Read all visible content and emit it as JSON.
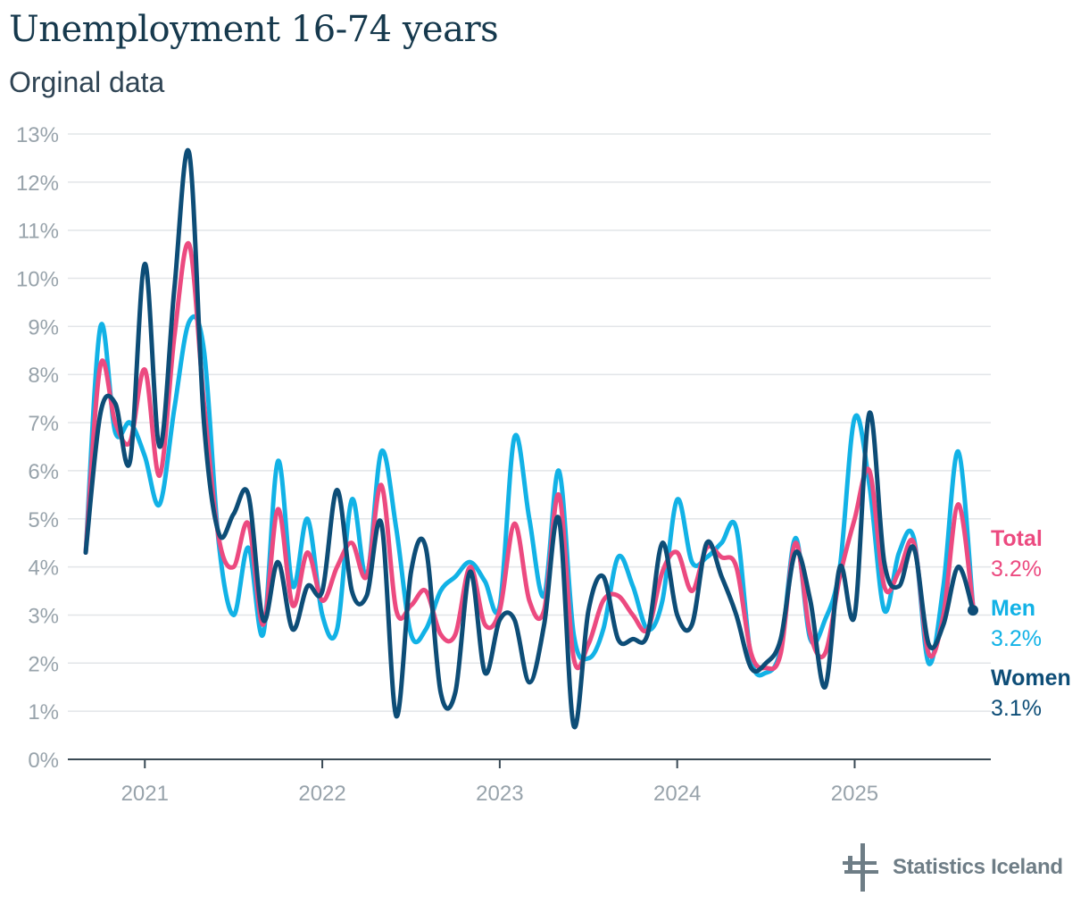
{
  "title": "Unemployment 16-74 years",
  "subtitle": "Orginal data",
  "brand": "Statistics Iceland",
  "chart_data": {
    "type": "line",
    "title": "Unemployment 16-74 years",
    "subtitle": "Orginal data",
    "xlabel": "",
    "ylabel": "",
    "ylim": [
      0,
      13
    ],
    "ytick_values": [
      0,
      1,
      2,
      3,
      4,
      5,
      6,
      7,
      8,
      9,
      10,
      11,
      12,
      13
    ],
    "ytick_labels": [
      "0%",
      "1%",
      "2%",
      "3%",
      "4%",
      "5%",
      "6%",
      "7%",
      "8%",
      "9%",
      "10%",
      "11%",
      "12%",
      "13%"
    ],
    "xtick_labels": [
      "2021",
      "2022",
      "2023",
      "2024",
      "2025"
    ],
    "x_start": "2020-09",
    "x_end": "2025-09",
    "legend": "end-labels right",
    "series": [
      {
        "name": "Men",
        "color": "#12b2e6",
        "end_label": "Men",
        "end_value_label": "3.2%",
        "values": [
          4.3,
          9.0,
          6.8,
          7.0,
          6.3,
          5.3,
          7.3,
          9.1,
          8.5,
          4.5,
          3.0,
          4.4,
          2.6,
          6.2,
          3.6,
          5.0,
          3.0,
          2.7,
          5.4,
          3.8,
          6.4,
          4.8,
          2.6,
          2.7,
          3.5,
          3.8,
          4.1,
          3.7,
          3.2,
          6.7,
          5.0,
          3.4,
          6.0,
          2.6,
          2.1,
          2.7,
          4.2,
          3.6,
          2.7,
          3.3,
          5.4,
          4.1,
          4.2,
          4.5,
          4.8,
          2.1,
          1.8,
          2.3,
          4.6,
          2.5,
          2.9,
          4.0,
          7.1,
          5.7,
          3.1,
          4.3,
          4.6,
          2.0,
          3.6,
          6.4,
          3.2
        ]
      },
      {
        "name": "Total",
        "color": "#ec4a80",
        "end_label": "Total",
        "end_value_label": "3.2%",
        "values": [
          4.3,
          8.2,
          7.0,
          6.6,
          8.1,
          5.9,
          8.8,
          10.7,
          7.4,
          4.6,
          4.0,
          4.9,
          2.8,
          5.2,
          3.2,
          4.3,
          3.3,
          4.0,
          4.5,
          3.8,
          5.7,
          3.1,
          3.2,
          3.5,
          2.6,
          2.6,
          4.0,
          2.8,
          3.1,
          4.9,
          3.3,
          3.1,
          5.5,
          2.1,
          2.4,
          3.3,
          3.4,
          3.0,
          2.7,
          3.9,
          4.3,
          3.5,
          4.4,
          4.2,
          4.0,
          2.2,
          1.9,
          2.2,
          4.5,
          2.6,
          2.2,
          3.8,
          5.0,
          6.0,
          3.6,
          3.9,
          4.5,
          2.2,
          3.0,
          5.3,
          3.2
        ]
      },
      {
        "name": "Women",
        "color": "#0d4d77",
        "end_label": "Women",
        "end_value_label": "3.1%",
        "values": [
          4.3,
          7.2,
          7.4,
          6.2,
          10.3,
          6.5,
          9.8,
          12.6,
          7.0,
          4.7,
          5.1,
          5.5,
          2.9,
          4.1,
          2.7,
          3.6,
          3.5,
          5.6,
          3.5,
          3.4,
          4.9,
          0.9,
          3.9,
          4.4,
          1.4,
          1.4,
          3.9,
          1.8,
          2.9,
          2.9,
          1.6,
          2.8,
          5.0,
          0.7,
          3.1,
          3.8,
          2.5,
          2.5,
          2.6,
          4.5,
          3.0,
          2.8,
          4.5,
          3.8,
          3.0,
          1.9,
          2.0,
          2.5,
          4.3,
          3.3,
          1.5,
          4.0,
          3.0,
          7.2,
          4.1,
          3.6,
          4.4,
          2.4,
          2.8,
          4.0,
          3.1
        ]
      }
    ]
  }
}
